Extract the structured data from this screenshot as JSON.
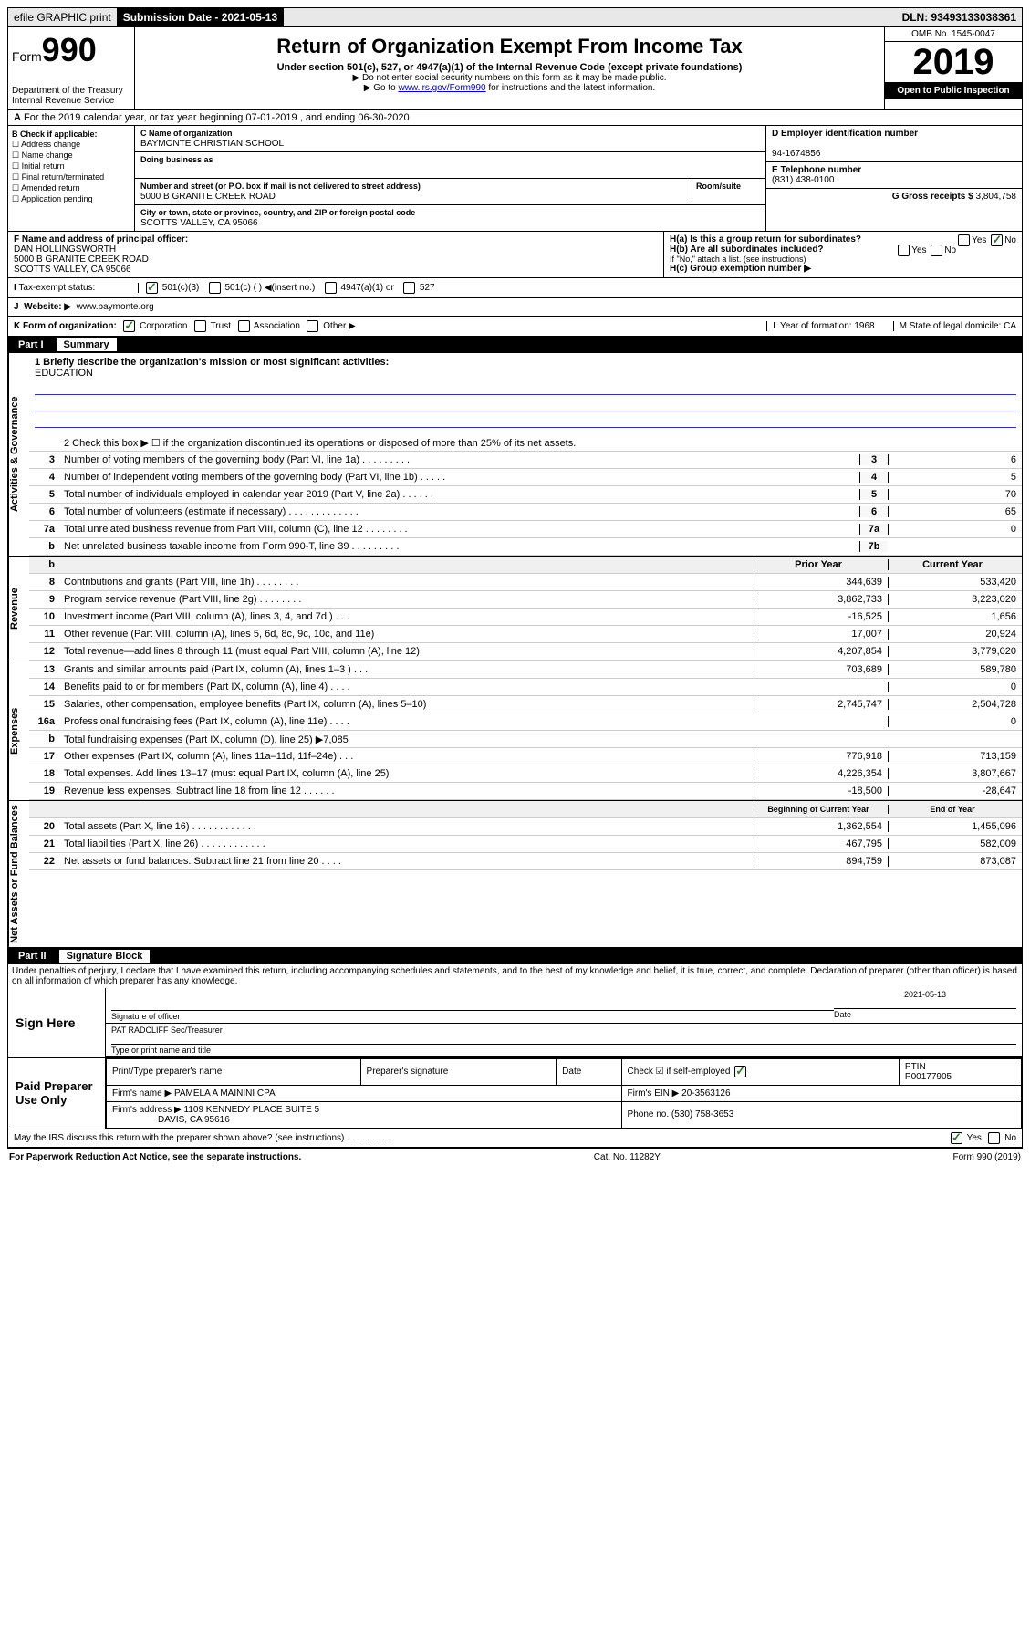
{
  "topbar": {
    "efile": "efile GRAPHIC print",
    "subdate_label": "Submission Date - ",
    "subdate": "2021-05-13",
    "dln": "DLN: 93493133038361"
  },
  "header": {
    "form_label": "Form",
    "form_num": "990",
    "dept": "Department of the Treasury\nInternal Revenue Service",
    "title": "Return of Organization Exempt From Income Tax",
    "subtitle": "Under section 501(c), 527, or 4947(a)(1) of the Internal Revenue Code (except private foundations)",
    "note1": "▶ Do not enter social security numbers on this form as it may be made public.",
    "note2": "▶ Go to www.irs.gov/Form990 for instructions and the latest information.",
    "link": "www.irs.gov/Form990",
    "omb": "OMB No. 1545-0047",
    "year": "2019",
    "inspect": "Open to Public Inspection"
  },
  "line_a": "For the 2019 calendar year, or tax year beginning 07-01-2019   , and ending 06-30-2020",
  "section_b": {
    "label": "B Check if applicable:",
    "items": [
      "Address change",
      "Name change",
      "Initial return",
      "Final return/terminated",
      "Amended return",
      "Application pending"
    ]
  },
  "section_c": {
    "name_label": "C Name of organization",
    "name": "BAYMONTE CHRISTIAN SCHOOL",
    "dba_label": "Doing business as",
    "addr_label": "Number and street (or P.O. box if mail is not delivered to street address)",
    "room_label": "Room/suite",
    "addr": "5000 B GRANITE CREEK ROAD",
    "city_label": "City or town, state or province, country, and ZIP or foreign postal code",
    "city": "SCOTTS VALLEY, CA  95066"
  },
  "section_deg": {
    "d_label": "D Employer identification number",
    "ein": "94-1674856",
    "e_label": "E Telephone number",
    "phone": "(831) 438-0100",
    "g_label": "G Gross receipts $",
    "gross": "3,804,758"
  },
  "section_f": {
    "label": "F  Name and address of principal officer:",
    "name": "DAN HOLLINGSWORTH",
    "addr1": "5000 B GRANITE CREEK ROAD",
    "addr2": "SCOTTS VALLEY, CA  95066"
  },
  "section_h": {
    "ha": "H(a)  Is this a group return for subordinates?",
    "hb": "H(b)  Are all subordinates included?",
    "hb_note": "If \"No,\" attach a list. (see instructions)",
    "hc": "H(c)  Group exemption number ▶"
  },
  "tax_status": {
    "label": "Tax-exempt status:",
    "opts": [
      "501(c)(3)",
      "501(c) (  ) ◀(insert no.)",
      "4947(a)(1) or",
      "527"
    ]
  },
  "website": {
    "label": "Website: ▶",
    "url": "www.baymonte.org"
  },
  "k_row": {
    "label": "K Form of organization:",
    "opts": [
      "Corporation",
      "Trust",
      "Association",
      "Other ▶"
    ],
    "l": "L Year of formation: 1968",
    "m": "M State of legal domicile: CA"
  },
  "part1": {
    "num": "Part I",
    "title": "Summary"
  },
  "sections": {
    "gov": "Activities & Governance",
    "rev": "Revenue",
    "exp": "Expenses",
    "net": "Net Assets or Fund Balances"
  },
  "mission": {
    "label": "1  Briefly describe the organization's mission or most significant activities:",
    "text": "EDUCATION"
  },
  "line2": "2   Check this box ▶ ☐  if the organization discontinued its operations or disposed of more than 25% of its net assets.",
  "gov_lines": [
    {
      "n": "3",
      "d": "Number of voting members of the governing body (Part VI, line 1a)   .    .    .    .    .    .    .    .    .",
      "b": "3",
      "v": "6"
    },
    {
      "n": "4",
      "d": "Number of independent voting members of the governing body (Part VI, line 1b)   .    .    .    .    .",
      "b": "4",
      "v": "5"
    },
    {
      "n": "5",
      "d": "Total number of individuals employed in calendar year 2019 (Part V, line 2a)   .    .    .    .    .    .",
      "b": "5",
      "v": "70"
    },
    {
      "n": "6",
      "d": "Total number of volunteers (estimate if necessary)   .    .    .    .    .    .    .    .    .    .    .    .    .",
      "b": "6",
      "v": "65"
    },
    {
      "n": "7a",
      "d": "Total unrelated business revenue from Part VIII, column (C), line 12   .    .    .    .    .    .    .    .",
      "b": "7a",
      "v": "0"
    },
    {
      "n": "b",
      "d": "Net unrelated business taxable income from Form 990-T, line 39   .    .    .    .    .    .    .    .    .",
      "b": "7b",
      "v": ""
    }
  ],
  "col_headers": {
    "prior": "Prior Year",
    "current": "Current Year",
    "boy": "Beginning of Current Year",
    "eoy": "End of Year"
  },
  "rev_lines": [
    {
      "n": "8",
      "d": "Contributions and grants (Part VIII, line 1h)   .    .    .    .    .    .    .    .",
      "p": "344,639",
      "c": "533,420"
    },
    {
      "n": "9",
      "d": "Program service revenue (Part VIII, line 2g)   .    .    .    .    .    .    .    .",
      "p": "3,862,733",
      "c": "3,223,020"
    },
    {
      "n": "10",
      "d": "Investment income (Part VIII, column (A), lines 3, 4, and 7d )   .    .    .",
      "p": "-16,525",
      "c": "1,656"
    },
    {
      "n": "11",
      "d": "Other revenue (Part VIII, column (A), lines 5, 6d, 8c, 9c, 10c, and 11e)",
      "p": "17,007",
      "c": "20,924"
    },
    {
      "n": "12",
      "d": "Total revenue—add lines 8 through 11 (must equal Part VIII, column (A), line 12)",
      "p": "4,207,854",
      "c": "3,779,020"
    }
  ],
  "exp_lines": [
    {
      "n": "13",
      "d": "Grants and similar amounts paid (Part IX, column (A), lines 1–3 )   .    .    .",
      "p": "703,689",
      "c": "589,780"
    },
    {
      "n": "14",
      "d": "Benefits paid to or for members (Part IX, column (A), line 4)   .    .    .    .",
      "p": "",
      "c": "0"
    },
    {
      "n": "15",
      "d": "Salaries, other compensation, employee benefits (Part IX, column (A), lines 5–10)",
      "p": "2,745,747",
      "c": "2,504,728"
    },
    {
      "n": "16a",
      "d": "Professional fundraising fees (Part IX, column (A), line 11e)   .    .    .    .",
      "p": "",
      "c": "0"
    },
    {
      "n": "b",
      "d": "Total fundraising expenses (Part IX, column (D), line 25) ▶7,085",
      "p": "shade",
      "c": "shade"
    },
    {
      "n": "17",
      "d": "Other expenses (Part IX, column (A), lines 11a–11d, 11f–24e)   .    .    .",
      "p": "776,918",
      "c": "713,159"
    },
    {
      "n": "18",
      "d": "Total expenses. Add lines 13–17 (must equal Part IX, column (A), line 25)",
      "p": "4,226,354",
      "c": "3,807,667"
    },
    {
      "n": "19",
      "d": "Revenue less expenses. Subtract line 18 from line 12   .    .    .    .    .    .",
      "p": "-18,500",
      "c": "-28,647"
    }
  ],
  "net_lines": [
    {
      "n": "20",
      "d": "Total assets (Part X, line 16)   .    .    .    .    .    .    .    .    .    .    .    .",
      "p": "1,362,554",
      "c": "1,455,096"
    },
    {
      "n": "21",
      "d": "Total liabilities (Part X, line 26)   .    .    .    .    .    .    .    .    .    .    .    .",
      "p": "467,795",
      "c": "582,009"
    },
    {
      "n": "22",
      "d": "Net assets or fund balances. Subtract line 21 from line 20   .    .    .    .",
      "p": "894,759",
      "c": "873,087"
    }
  ],
  "part2": {
    "num": "Part II",
    "title": "Signature Block",
    "penalty": "Under penalties of perjury, I declare that I have examined this return, including accompanying schedules and statements, and to the best of my knowledge and belief, it is true, correct, and complete. Declaration of preparer (other than officer) is based on all information of which preparer has any knowledge."
  },
  "sign": {
    "here": "Sign Here",
    "sig_officer": "Signature of officer",
    "date": "2021-05-13",
    "date_label": "Date",
    "name": "PAT RADCLIFF  Sec/Treasurer",
    "name_label": "Type or print name and title"
  },
  "paid": {
    "label": "Paid Preparer Use Only",
    "h1": "Print/Type preparer's name",
    "h2": "Preparer's signature",
    "h3": "Date",
    "h4": "Check ☑ if self-employed",
    "h5": "PTIN",
    "ptin": "P00177905",
    "firm_name_label": "Firm's name    ▶",
    "firm_name": "PAMELA A MAININI CPA",
    "firm_ein_label": "Firm's EIN ▶",
    "firm_ein": "20-3563126",
    "firm_addr_label": "Firm's address ▶",
    "firm_addr1": "1109 KENNEDY PLACE SUITE 5",
    "firm_addr2": "DAVIS, CA  95616",
    "phone_label": "Phone no.",
    "phone": "(530) 758-3653"
  },
  "discuss": "May the IRS discuss this return with the preparer shown above? (see instructions)   .    .    .    .    .    .    .    .    .",
  "footer": {
    "left": "For Paperwork Reduction Act Notice, see the separate instructions.",
    "mid": "Cat. No. 11282Y",
    "right": "Form 990 (2019)"
  }
}
